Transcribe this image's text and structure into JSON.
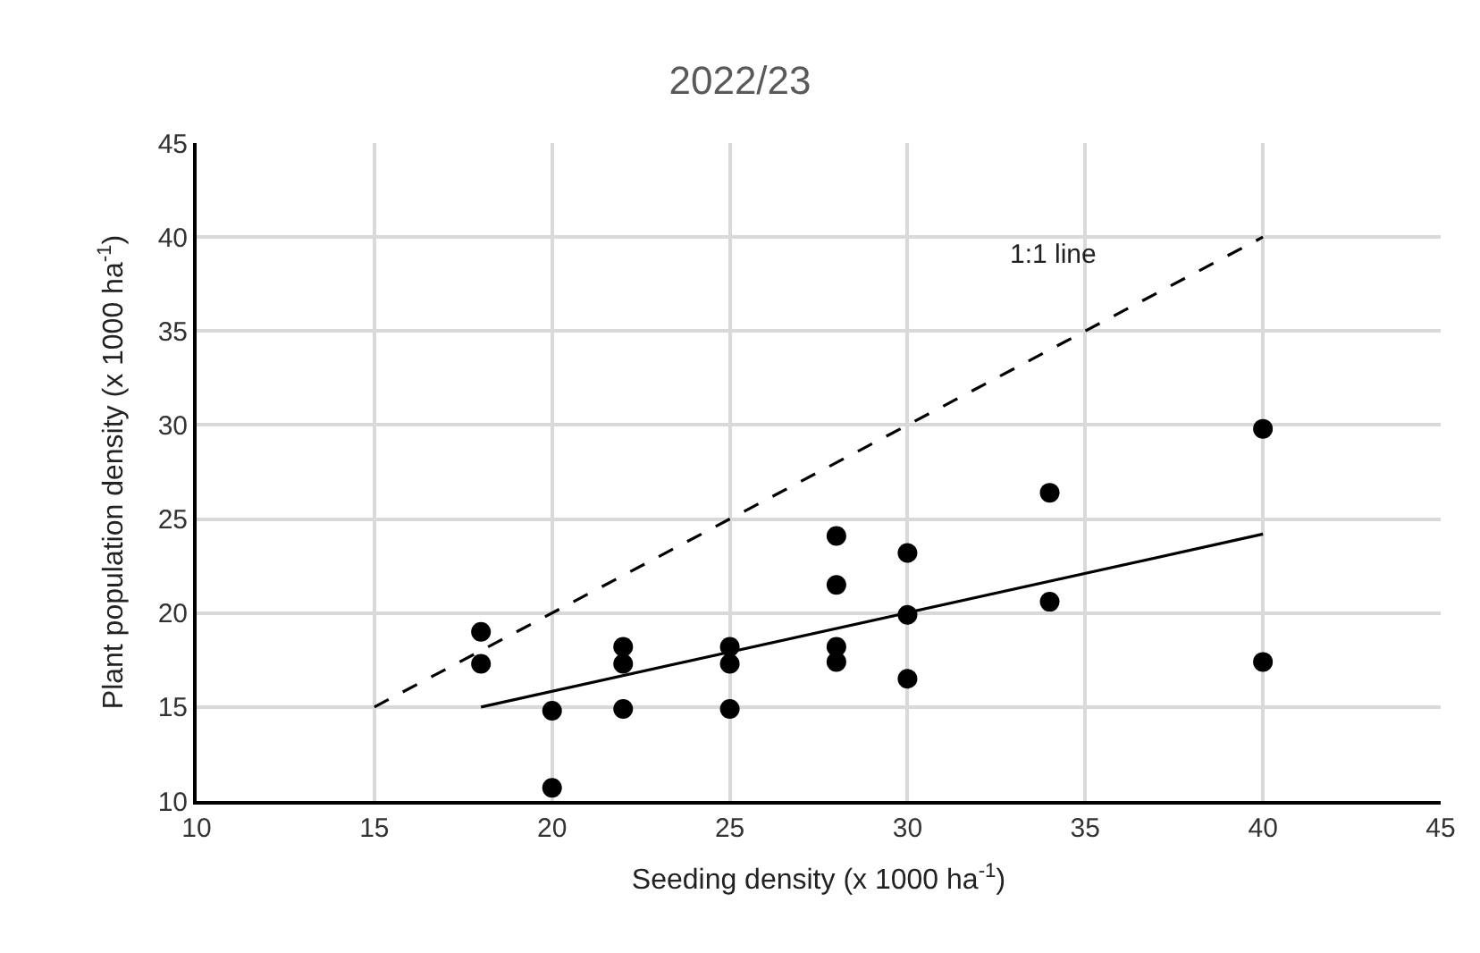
{
  "chart_data": {
    "type": "scatter",
    "title": "2022/23",
    "xlabel": "Seeding density (x 1000 ha$^{-1}$)",
    "ylabel": "Plant population density (x 1000 ha$^{-1}$)",
    "xlim": [
      10,
      45
    ],
    "xticks": [
      10,
      15,
      20,
      25,
      30,
      35,
      40,
      45
    ],
    "ylim": [
      10,
      45
    ],
    "yticks": [
      10,
      15,
      20,
      25,
      30,
      35,
      40,
      45
    ],
    "grid": true,
    "annotations": [
      "1:1 line"
    ],
    "series": [
      {
        "marker": "circle",
        "color": "#000000",
        "x": [
          18,
          18,
          20,
          20,
          22,
          22,
          22,
          25,
          25,
          25,
          28,
          28,
          28,
          28,
          30,
          30,
          30,
          34,
          34,
          40,
          40
        ],
        "values": [
          19.0,
          17.3,
          14.8,
          10.7,
          18.2,
          17.3,
          14.9,
          18.2,
          17.3,
          14.9,
          24.1,
          21.5,
          18.2,
          17.4,
          23.2,
          19.9,
          16.5,
          26.4,
          20.6,
          29.8,
          17.4
        ]
      },
      {
        "type": "line",
        "marker": "none",
        "line_style": "solid",
        "color": "#000000",
        "x": [
          18,
          40
        ],
        "values": [
          15.0,
          24.2
        ]
      },
      {
        "type": "line",
        "marker": "none",
        "line_style": "dashed",
        "color": "#000000",
        "x": [
          15,
          40
        ],
        "values": [
          15,
          40
        ]
      }
    ]
  }
}
